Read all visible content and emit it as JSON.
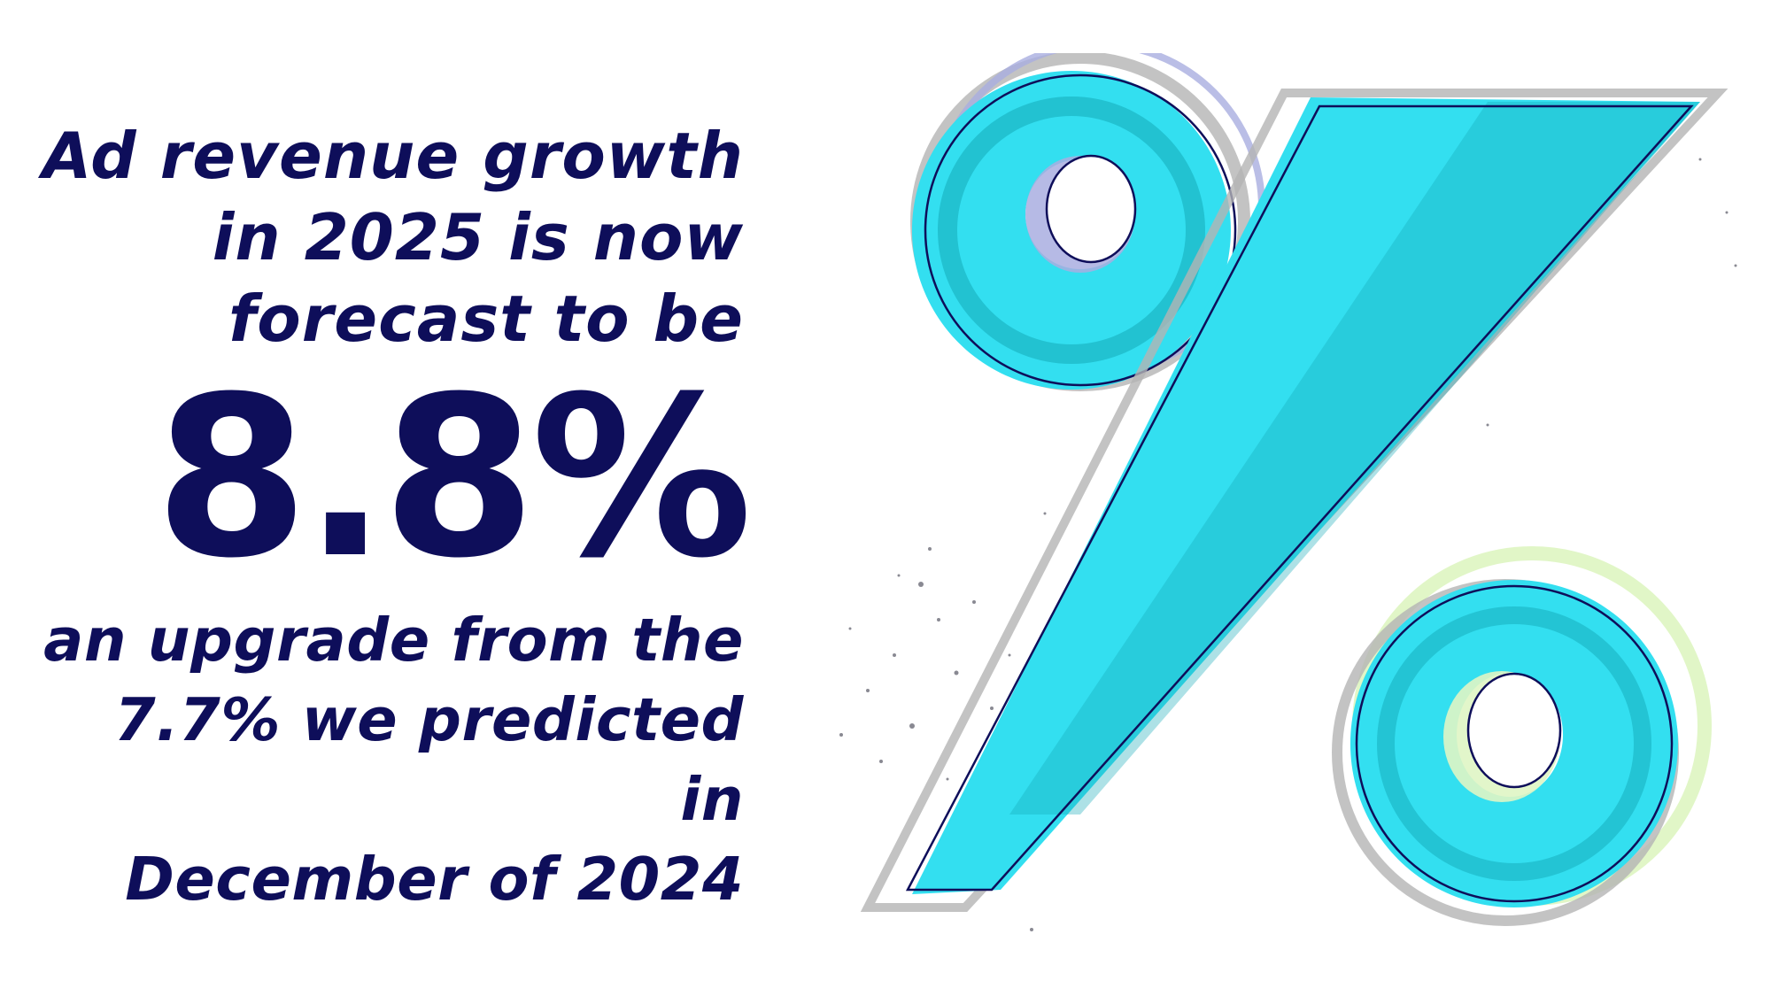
{
  "headline": {
    "line1": "Ad revenue growth",
    "line2": "in 2025 is now",
    "line3": "forecast to be"
  },
  "figure": "8.8%",
  "subline": {
    "line1": "an upgrade from the",
    "line2": "7.7% we predicted in",
    "line3": "December of 2024"
  },
  "colors": {
    "text": "#0e0e5a",
    "accent": "#33dff0",
    "accent_dark": "#14a9b8",
    "shadow_blue": "#a9aee0",
    "shadow_green": "#dff5c4",
    "shadow_gray": "#b4b4b4"
  },
  "graphic": {
    "icon": "percent-sign-icon"
  }
}
